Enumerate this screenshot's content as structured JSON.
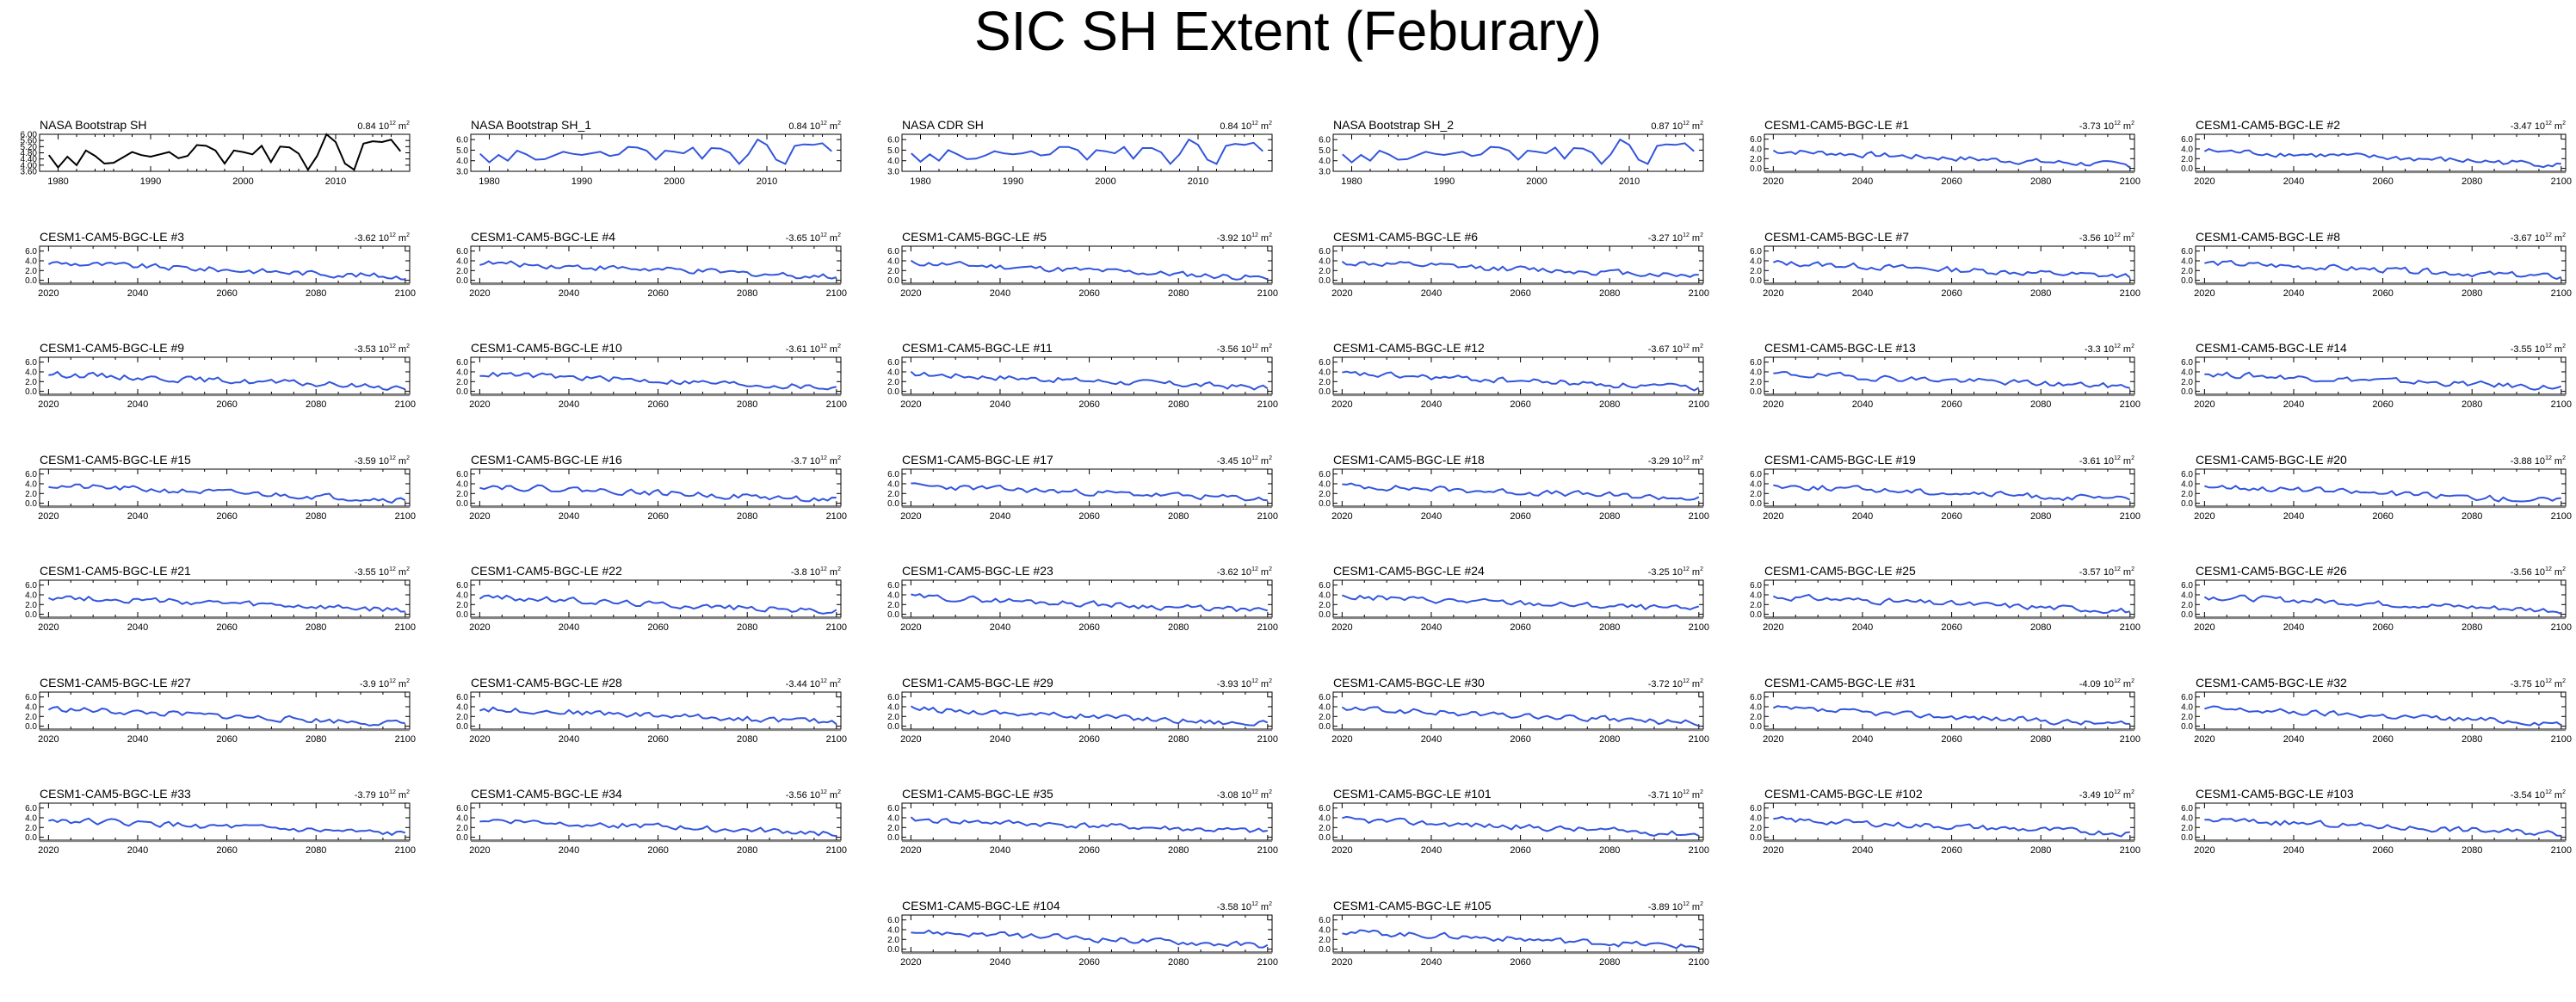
{
  "title": "SIC SH Extent (Feburary)",
  "unit_sup": "12",
  "unit_prefix": "10",
  "unit_suffix": "m",
  "unit_exp2": "2",
  "colors": {
    "observed": "#000000",
    "model": "#3355dd",
    "axis": "#000000"
  },
  "chart_data": [
    {
      "type": "line",
      "title": "NASA Bootstrap SH",
      "trend": "0.84",
      "color": "#000000",
      "x": [
        1979,
        1980,
        1981,
        1982,
        1983,
        1984,
        1985,
        1986,
        1987,
        1988,
        1989,
        1990,
        1991,
        1992,
        1993,
        1994,
        1995,
        1996,
        1997,
        1998,
        1999,
        2000,
        2001,
        2002,
        2003,
        2004,
        2005,
        2006,
        2007,
        2008,
        2009,
        2010,
        2011,
        2012,
        2013,
        2014,
        2015,
        2016,
        2017
      ],
      "y": [
        4.65,
        3.85,
        4.55,
        4.0,
        4.95,
        4.6,
        4.1,
        4.15,
        4.5,
        4.85,
        4.65,
        4.55,
        4.7,
        4.85,
        4.45,
        4.6,
        5.3,
        5.25,
        4.95,
        4.1,
        4.95,
        4.85,
        4.7,
        5.25,
        4.2,
        5.2,
        5.15,
        4.75,
        3.7,
        4.6,
        6.0,
        5.5,
        4.1,
        3.7,
        5.4,
        5.55,
        5.5,
        5.65,
        4.9
      ],
      "xticks": [
        1980,
        1990,
        2000,
        2010
      ],
      "xlim": [
        1978,
        2018
      ],
      "ylim": [
        3.6,
        6.0
      ],
      "yticks": [
        "6.00",
        "5.60",
        "5.20",
        "4.80",
        "4.40",
        "4.00",
        "3.60"
      ],
      "ytick_values": [
        6.0,
        5.6,
        5.2,
        4.8,
        4.4,
        4.0,
        3.6
      ]
    },
    {
      "type": "line",
      "title": "NASA Bootstrap SH_1",
      "trend": "0.84",
      "color": "#3355dd",
      "x": [
        1979,
        1980,
        1981,
        1982,
        1983,
        1984,
        1985,
        1986,
        1987,
        1988,
        1989,
        1990,
        1991,
        1992,
        1993,
        1994,
        1995,
        1996,
        1997,
        1998,
        1999,
        2000,
        2001,
        2002,
        2003,
        2004,
        2005,
        2006,
        2007,
        2008,
        2009,
        2010,
        2011,
        2012,
        2013,
        2014,
        2015,
        2016,
        2017
      ],
      "y": [
        4.65,
        3.85,
        4.55,
        4.0,
        4.95,
        4.6,
        4.1,
        4.15,
        4.5,
        4.85,
        4.65,
        4.55,
        4.7,
        4.85,
        4.45,
        4.6,
        5.3,
        5.25,
        4.95,
        4.1,
        4.95,
        4.85,
        4.7,
        5.25,
        4.2,
        5.2,
        5.15,
        4.75,
        3.7,
        4.6,
        6.0,
        5.5,
        4.1,
        3.7,
        5.4,
        5.55,
        5.5,
        5.65,
        4.9
      ],
      "xticks": [
        1980,
        1990,
        2000,
        2010
      ],
      "xlim": [
        1978,
        2018
      ],
      "ylim": [
        3.0,
        6.5
      ],
      "yticks": [
        "6.0",
        "5.0",
        "4.0",
        "3.0"
      ],
      "ytick_values": [
        6.0,
        5.0,
        4.0,
        3.0
      ]
    },
    {
      "type": "line",
      "title": "NASA CDR SH",
      "trend": "0.84",
      "color": "#3355dd",
      "x": [
        1979,
        1980,
        1981,
        1982,
        1983,
        1984,
        1985,
        1986,
        1987,
        1988,
        1989,
        1990,
        1991,
        1992,
        1993,
        1994,
        1995,
        1996,
        1997,
        1998,
        1999,
        2000,
        2001,
        2002,
        2003,
        2004,
        2005,
        2006,
        2007,
        2008,
        2009,
        2010,
        2011,
        2012,
        2013,
        2014,
        2015,
        2016,
        2017
      ],
      "y": [
        4.7,
        3.9,
        4.6,
        4.0,
        5.0,
        4.6,
        4.15,
        4.2,
        4.5,
        4.9,
        4.7,
        4.6,
        4.7,
        4.9,
        4.5,
        4.6,
        5.3,
        5.3,
        5.0,
        4.1,
        5.0,
        4.9,
        4.7,
        5.3,
        4.2,
        5.2,
        5.2,
        4.8,
        3.7,
        4.6,
        6.0,
        5.5,
        4.1,
        3.7,
        5.4,
        5.6,
        5.5,
        5.7,
        4.9
      ],
      "xticks": [
        1980,
        1990,
        2000,
        2010
      ],
      "xlim": [
        1978,
        2018
      ],
      "ylim": [
        3.0,
        6.5
      ],
      "yticks": [
        "6.0",
        "5.0",
        "4.0",
        "3.0"
      ],
      "ytick_values": [
        6.0,
        5.0,
        4.0,
        3.0
      ]
    },
    {
      "type": "line",
      "title": "NASA Bootstrap SH_2",
      "trend": "0.87",
      "color": "#3355dd",
      "x": [
        1979,
        1980,
        1981,
        1982,
        1983,
        1984,
        1985,
        1986,
        1987,
        1988,
        1989,
        1990,
        1991,
        1992,
        1993,
        1994,
        1995,
        1996,
        1997,
        1998,
        1999,
        2000,
        2001,
        2002,
        2003,
        2004,
        2005,
        2006,
        2007,
        2008,
        2009,
        2010,
        2011,
        2012,
        2013,
        2014,
        2015,
        2016,
        2017
      ],
      "y": [
        4.6,
        3.85,
        4.55,
        4.0,
        4.95,
        4.6,
        4.1,
        4.15,
        4.5,
        4.85,
        4.65,
        4.55,
        4.7,
        4.85,
        4.45,
        4.6,
        5.3,
        5.25,
        4.95,
        4.1,
        4.95,
        4.85,
        4.7,
        5.25,
        4.2,
        5.2,
        5.15,
        4.75,
        3.7,
        4.6,
        6.0,
        5.5,
        4.1,
        3.7,
        5.4,
        5.55,
        5.5,
        5.65,
        4.9
      ],
      "xticks": [
        1980,
        1990,
        2000,
        2010
      ],
      "xlim": [
        1978,
        2018
      ],
      "ylim": [
        3.0,
        6.5
      ],
      "yticks": [
        "6.0",
        "5.0",
        "4.0",
        "3.0"
      ],
      "ytick_values": [
        6.0,
        5.0,
        4.0,
        3.0
      ]
    }
  ],
  "ensemble": {
    "type": "line",
    "color": "#3355dd",
    "x_start": 2020,
    "x_end": 2100,
    "xticks": [
      2020,
      2040,
      2060,
      2080,
      2100
    ],
    "xlim": [
      2018,
      2101
    ],
    "ylim": [
      -0.6,
      7.0
    ],
    "yticks": [
      "6.0",
      "4.0",
      "2.0",
      "0.0"
    ],
    "ytick_values": [
      6.0,
      4.0,
      2.0,
      0.0
    ],
    "members": [
      {
        "title": "CESM1-CAM5-BGC-LE #1",
        "trend": "-3.73"
      },
      {
        "title": "CESM1-CAM5-BGC-LE #2",
        "trend": "-3.47"
      },
      {
        "title": "CESM1-CAM5-BGC-LE #3",
        "trend": "-3.62"
      },
      {
        "title": "CESM1-CAM5-BGC-LE #4",
        "trend": "-3.65"
      },
      {
        "title": "CESM1-CAM5-BGC-LE #5",
        "trend": "-3.92"
      },
      {
        "title": "CESM1-CAM5-BGC-LE #6",
        "trend": "-3.27"
      },
      {
        "title": "CESM1-CAM5-BGC-LE #7",
        "trend": "-3.56"
      },
      {
        "title": "CESM1-CAM5-BGC-LE #8",
        "trend": "-3.67"
      },
      {
        "title": "CESM1-CAM5-BGC-LE #9",
        "trend": "-3.53"
      },
      {
        "title": "CESM1-CAM5-BGC-LE #10",
        "trend": "-3.61"
      },
      {
        "title": "CESM1-CAM5-BGC-LE #11",
        "trend": "-3.56"
      },
      {
        "title": "CESM1-CAM5-BGC-LE #12",
        "trend": "-3.67"
      },
      {
        "title": "CESM1-CAM5-BGC-LE #13",
        "trend": "-3.3"
      },
      {
        "title": "CESM1-CAM5-BGC-LE #14",
        "trend": "-3.55"
      },
      {
        "title": "CESM1-CAM5-BGC-LE #15",
        "trend": "-3.59"
      },
      {
        "title": "CESM1-CAM5-BGC-LE #16",
        "trend": "-3.7"
      },
      {
        "title": "CESM1-CAM5-BGC-LE #17",
        "trend": "-3.45"
      },
      {
        "title": "CESM1-CAM5-BGC-LE #18",
        "trend": "-3.29"
      },
      {
        "title": "CESM1-CAM5-BGC-LE #19",
        "trend": "-3.61"
      },
      {
        "title": "CESM1-CAM5-BGC-LE #20",
        "trend": "-3.88"
      },
      {
        "title": "CESM1-CAM5-BGC-LE #21",
        "trend": "-3.55"
      },
      {
        "title": "CESM1-CAM5-BGC-LE #22",
        "trend": "-3.8"
      },
      {
        "title": "CESM1-CAM5-BGC-LE #23",
        "trend": "-3.62"
      },
      {
        "title": "CESM1-CAM5-BGC-LE #24",
        "trend": "-3.25"
      },
      {
        "title": "CESM1-CAM5-BGC-LE #25",
        "trend": "-3.57"
      },
      {
        "title": "CESM1-CAM5-BGC-LE #26",
        "trend": "-3.56"
      },
      {
        "title": "CESM1-CAM5-BGC-LE #27",
        "trend": "-3.9"
      },
      {
        "title": "CESM1-CAM5-BGC-LE #28",
        "trend": "-3.44"
      },
      {
        "title": "CESM1-CAM5-BGC-LE #29",
        "trend": "-3.93"
      },
      {
        "title": "CESM1-CAM5-BGC-LE #30",
        "trend": "-3.72"
      },
      {
        "title": "CESM1-CAM5-BGC-LE #31",
        "trend": "-4.09"
      },
      {
        "title": "CESM1-CAM5-BGC-LE #32",
        "trend": "-3.75"
      },
      {
        "title": "CESM1-CAM5-BGC-LE #33",
        "trend": "-3.79"
      },
      {
        "title": "CESM1-CAM5-BGC-LE #34",
        "trend": "-3.56"
      },
      {
        "title": "CESM1-CAM5-BGC-LE #35",
        "trend": "-3.08"
      },
      {
        "title": "CESM1-CAM5-BGC-LE #101",
        "trend": "-3.71"
      },
      {
        "title": "CESM1-CAM5-BGC-LE #102",
        "trend": "-3.49"
      },
      {
        "title": "CESM1-CAM5-BGC-LE #103",
        "trend": "-3.54"
      },
      {
        "title": "CESM1-CAM5-BGC-LE #104",
        "trend": "-3.58"
      },
      {
        "title": "CESM1-CAM5-BGC-LE #105",
        "trend": "-3.89"
      }
    ]
  }
}
